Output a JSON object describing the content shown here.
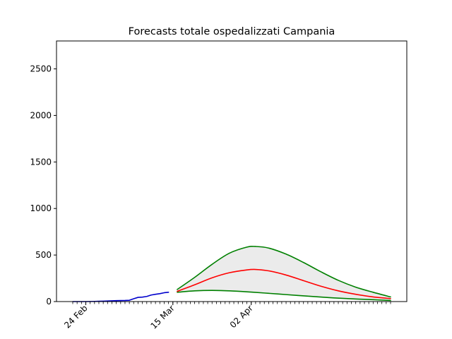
{
  "chart_data": {
    "type": "line",
    "title": "Forecasts totale ospedalizzati Campania",
    "xlabel": "",
    "ylabel": "",
    "x_axis": {
      "type": "date",
      "start": "2020-02-21",
      "end": "2020-05-04",
      "tick_labels": [
        {
          "date": "2020-02-24",
          "label": "24 Feb"
        },
        {
          "date": "2020-03-15",
          "label": "15 Mar"
        },
        {
          "date": "2020-04-02",
          "label": "02 Apr"
        }
      ],
      "minor_ticks": "daily"
    },
    "ylim": [
      0,
      2800
    ],
    "y_ticks": [
      0,
      500,
      1000,
      1500,
      2000,
      2500
    ],
    "grid": false,
    "legend": "none",
    "series": [
      {
        "role": "observed",
        "color": "#0000cc",
        "points": [
          [
            "2020-02-21",
            0
          ],
          [
            "2020-02-22",
            0
          ],
          [
            "2020-02-23",
            0
          ],
          [
            "2020-02-24",
            0
          ],
          [
            "2020-02-25",
            1
          ],
          [
            "2020-02-26",
            2
          ],
          [
            "2020-02-27",
            3
          ],
          [
            "2020-02-28",
            4
          ],
          [
            "2020-02-29",
            6
          ],
          [
            "2020-03-01",
            8
          ],
          [
            "2020-03-02",
            10
          ],
          [
            "2020-03-03",
            11
          ],
          [
            "2020-03-04",
            12
          ],
          [
            "2020-03-05",
            14
          ],
          [
            "2020-03-06",
            30
          ],
          [
            "2020-03-07",
            45
          ],
          [
            "2020-03-08",
            48
          ],
          [
            "2020-03-09",
            55
          ],
          [
            "2020-03-10",
            70
          ],
          [
            "2020-03-11",
            78
          ],
          [
            "2020-03-12",
            85
          ],
          [
            "2020-03-13",
            95
          ],
          [
            "2020-03-14",
            100
          ]
        ]
      },
      {
        "role": "forecast-central",
        "color": "#ff0000",
        "points": [
          [
            "2020-03-16",
            110
          ],
          [
            "2020-03-20",
            180
          ],
          [
            "2020-03-24",
            255
          ],
          [
            "2020-03-28",
            310
          ],
          [
            "2020-04-01",
            340
          ],
          [
            "2020-04-03",
            345
          ],
          [
            "2020-04-06",
            330
          ],
          [
            "2020-04-10",
            285
          ],
          [
            "2020-04-14",
            225
          ],
          [
            "2020-04-18",
            165
          ],
          [
            "2020-04-22",
            115
          ],
          [
            "2020-04-26",
            78
          ],
          [
            "2020-04-30",
            50
          ],
          [
            "2020-05-04",
            32
          ]
        ]
      },
      {
        "role": "forecast-upper",
        "color": "#008000",
        "points": [
          [
            "2020-03-16",
            130
          ],
          [
            "2020-03-20",
            260
          ],
          [
            "2020-03-24",
            400
          ],
          [
            "2020-03-28",
            520
          ],
          [
            "2020-04-01",
            585
          ],
          [
            "2020-04-03",
            592
          ],
          [
            "2020-04-06",
            575
          ],
          [
            "2020-04-10",
            510
          ],
          [
            "2020-04-14",
            420
          ],
          [
            "2020-04-18",
            320
          ],
          [
            "2020-04-22",
            228
          ],
          [
            "2020-04-26",
            155
          ],
          [
            "2020-04-30",
            100
          ],
          [
            "2020-05-04",
            50
          ]
        ]
      },
      {
        "role": "forecast-lower",
        "color": "#008000",
        "points": [
          [
            "2020-03-16",
            100
          ],
          [
            "2020-03-20",
            115
          ],
          [
            "2020-03-24",
            120
          ],
          [
            "2020-03-28",
            115
          ],
          [
            "2020-04-01",
            105
          ],
          [
            "2020-04-05",
            92
          ],
          [
            "2020-04-10",
            75
          ],
          [
            "2020-04-15",
            58
          ],
          [
            "2020-04-20",
            42
          ],
          [
            "2020-04-25",
            30
          ],
          [
            "2020-04-30",
            20
          ],
          [
            "2020-05-04",
            12
          ]
        ]
      }
    ],
    "band": {
      "between": [
        "forecast-lower",
        "forecast-upper"
      ],
      "color": "#ebebeb"
    }
  }
}
